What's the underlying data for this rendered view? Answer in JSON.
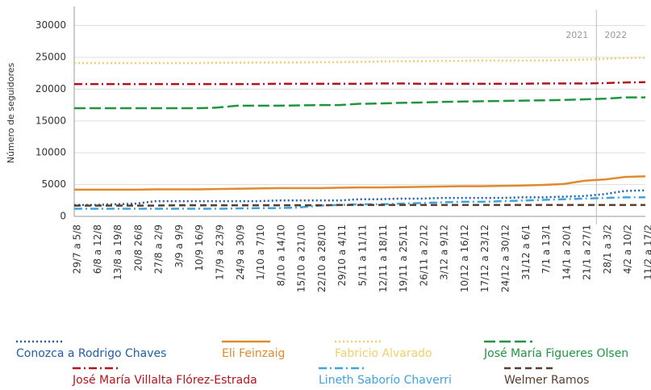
{
  "chart_data": {
    "type": "line",
    "y_label": "Número de seguidores",
    "categories": [
      "29/7 a 5/8",
      "6/8 a 12/8",
      "13/8 a 19/8",
      "20/8 26/8",
      "27/8 a 2/9",
      "3/9 a 9/9",
      "10/9 16/9",
      "17/9 a 23/9",
      "24/9 a 30/9",
      "1/10 a 7/10",
      "8/10 a 14/10",
      "15/10 a 21/10",
      "22/10 a 28/10",
      "29/10 a 4/11",
      "5/11 a 11/11",
      "12/11 a 18/11",
      "19/11 a 25/11",
      "26/11 a 2/12",
      "3/12 a 9/12",
      "10/12 a 16/12",
      "17/12 a 23/12",
      "24/12 a 30/12",
      "31/12 a 6/1",
      "7/1 a 13/1",
      "14/1 a 20/1",
      "21/1 a 27/1",
      "28/1 a 3/2",
      "4/2 a 10/2",
      "11/2 a 17/2"
    ],
    "series": [
      {
        "name": "Conozca a Rodrigo Chaves",
        "color": "#1f5fa6",
        "style": "dotted",
        "values": [
          1800,
          1800,
          1900,
          2000,
          2400,
          2400,
          2400,
          2400,
          2400,
          2400,
          2500,
          2500,
          2500,
          2500,
          2700,
          2700,
          2800,
          2800,
          2900,
          2900,
          2900,
          2900,
          3000,
          3000,
          3100,
          3200,
          3500,
          4000,
          4100
        ]
      },
      {
        "name": "Eli Feinzaig",
        "color": "#e08a2c",
        "style": "solid",
        "values": [
          4200,
          4200,
          4200,
          4200,
          4250,
          4250,
          4250,
          4300,
          4350,
          4400,
          4450,
          4450,
          4450,
          4500,
          4550,
          4550,
          4600,
          4650,
          4700,
          4750,
          4750,
          4800,
          4850,
          4950,
          5100,
          5600,
          5800,
          6200,
          6300
        ]
      },
      {
        "name": "Fabricio Alvarado",
        "color": "#f2cf6a",
        "style": "dotted",
        "values": [
          24100,
          24100,
          24100,
          24100,
          24100,
          24100,
          24100,
          24150,
          24150,
          24200,
          24200,
          24200,
          24250,
          24250,
          24300,
          24350,
          24400,
          24400,
          24450,
          24450,
          24500,
          24500,
          24500,
          24500,
          24550,
          24650,
          24750,
          24900,
          24950
        ]
      },
      {
        "name": "José María Figueres Olsen",
        "color": "#1e9640",
        "style": "longdash",
        "values": [
          17000,
          17000,
          17000,
          17000,
          17000,
          17000,
          17000,
          17100,
          17400,
          17400,
          17400,
          17450,
          17500,
          17500,
          17700,
          17750,
          17850,
          17900,
          18000,
          18050,
          18100,
          18150,
          18200,
          18250,
          18300,
          18400,
          18500,
          18700,
          18700
        ]
      },
      {
        "name": "José María Villalta Flórez-Estrada",
        "color": "#b3141c",
        "style": "dashdot",
        "values": [
          20800,
          20800,
          20800,
          20800,
          20800,
          20800,
          20800,
          20800,
          20800,
          20800,
          20850,
          20850,
          20850,
          20850,
          20850,
          20900,
          20900,
          20850,
          20850,
          20850,
          20850,
          20850,
          20850,
          20900,
          20900,
          20900,
          20950,
          21050,
          21100
        ]
      },
      {
        "name": "Lineth Saborío Chaverri",
        "color": "#3fa3de",
        "style": "dashdot",
        "values": [
          1200,
          1200,
          1200,
          1200,
          1200,
          1200,
          1200,
          1200,
          1250,
          1300,
          1300,
          1400,
          1700,
          1800,
          1900,
          1900,
          2000,
          2100,
          2200,
          2300,
          2300,
          2400,
          2500,
          2600,
          2700,
          2800,
          2900,
          3000,
          3000
        ]
      },
      {
        "name": "Welmer Ramos",
        "color": "#5a3d2e",
        "style": "dashed",
        "values": [
          1700,
          1700,
          1700,
          1700,
          1700,
          1750,
          1750,
          1750,
          1750,
          1750,
          1750,
          1750,
          1750,
          1800,
          1800,
          1800,
          1800,
          1800,
          1800,
          1800,
          1800,
          1800,
          1800,
          1800,
          1800,
          1800,
          1800,
          1800,
          1800
        ]
      }
    ],
    "annotations": [
      {
        "text": "2021"
      },
      {
        "text": "2022"
      }
    ],
    "ylim": [
      0,
      33000
    ],
    "yticks": [
      0,
      5000,
      10000,
      15000,
      20000,
      25000,
      30000
    ],
    "grid": true
  }
}
